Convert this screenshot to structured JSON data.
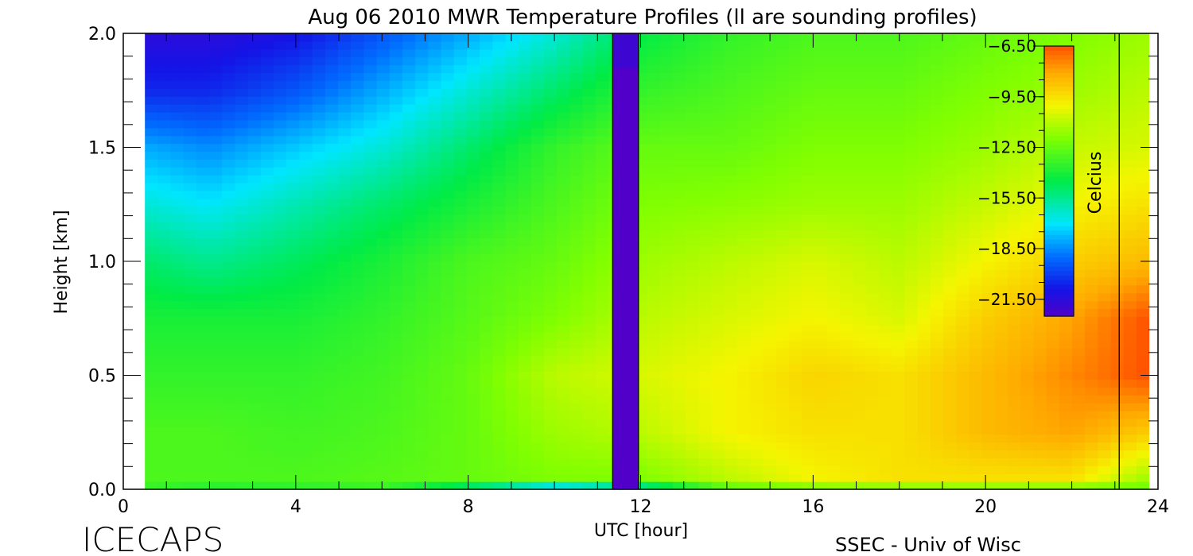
{
  "chart_data": {
    "type": "heatmap",
    "title": "Aug 06 2010 MWR Temperature Profiles (ll are sounding profiles)",
    "xlabel": "UTC [hour]",
    "ylabel": "Height [km]",
    "xlim": [
      0,
      24
    ],
    "ylim": [
      0,
      2.0
    ],
    "x_ticks": [
      "0",
      "4",
      "8",
      "12",
      "16",
      "20",
      "24"
    ],
    "y_ticks": [
      "0.0",
      "0.5",
      "1.0",
      "1.5",
      "2.0"
    ],
    "x_data_range": [
      0.5,
      23.8
    ],
    "sounding_profiles_utc": [
      11.35,
      11.95,
      23.1
    ],
    "colorbar": {
      "label": "Celcius",
      "ticks": [
        "-6.50",
        "-9.50",
        "-12.50",
        "-15.50",
        "-18.50",
        "-21.50"
      ],
      "range": [
        -22.5,
        -6.5
      ]
    },
    "heights_km": [
      0.0,
      0.05,
      0.25,
      0.5,
      0.75,
      1.0,
      1.25,
      1.5,
      1.75,
      2.0
    ],
    "times_utc": [
      0.5,
      2,
      4,
      6,
      8,
      10,
      12,
      14,
      16,
      18,
      20,
      22,
      23.8
    ],
    "temperature_c": [
      [
        -13.5,
        -14.0,
        -13.8,
        -13.5,
        -16.0,
        -19.0,
        -17.0,
        -13.0,
        -12.5,
        -12.5,
        -12.5,
        -12.5,
        -12.5
      ],
      [
        -13.0,
        -13.0,
        -13.0,
        -12.8,
        -12.5,
        -12.0,
        -12.0,
        -11.0,
        -10.0,
        -9.5,
        -9.5,
        -9.5,
        -11.5
      ],
      [
        -13.0,
        -13.0,
        -13.2,
        -13.0,
        -12.5,
        -11.5,
        -11.0,
        -10.0,
        -9.5,
        -9.5,
        -8.5,
        -8.0,
        -9.0
      ],
      [
        -13.5,
        -13.5,
        -13.5,
        -13.2,
        -12.5,
        -11.0,
        -10.5,
        -10.0,
        -9.2,
        -9.5,
        -8.5,
        -7.5,
        -6.5
      ],
      [
        -14.0,
        -14.0,
        -14.0,
        -13.5,
        -12.8,
        -12.0,
        -11.0,
        -10.5,
        -10.0,
        -10.5,
        -9.0,
        -8.0,
        -6.5
      ],
      [
        -15.0,
        -15.5,
        -14.8,
        -14.0,
        -13.0,
        -12.5,
        -11.5,
        -11.0,
        -10.5,
        -11.0,
        -10.0,
        -9.0,
        -8.5
      ],
      [
        -16.5,
        -17.0,
        -16.0,
        -15.0,
        -14.0,
        -13.0,
        -12.0,
        -11.8,
        -11.5,
        -11.5,
        -10.8,
        -10.0,
        -9.5
      ],
      [
        -18.0,
        -18.5,
        -17.5,
        -16.5,
        -15.0,
        -13.5,
        -12.5,
        -12.5,
        -12.0,
        -12.0,
        -11.5,
        -10.8,
        -10.5
      ],
      [
        -20.5,
        -20.5,
        -19.5,
        -18.0,
        -16.5,
        -15.0,
        -13.5,
        -13.0,
        -12.5,
        -12.5,
        -12.0,
        -11.5,
        -11.0
      ],
      [
        -21.5,
        -21.5,
        -21.0,
        -19.5,
        -18.0,
        -16.5,
        -14.5,
        -13.5,
        -13.0,
        -13.0,
        -12.5,
        -12.0,
        -11.5
      ]
    ]
  },
  "footer": {
    "brand": "ICECAPS",
    "credit": "SSEC - Univ of Wisc"
  }
}
